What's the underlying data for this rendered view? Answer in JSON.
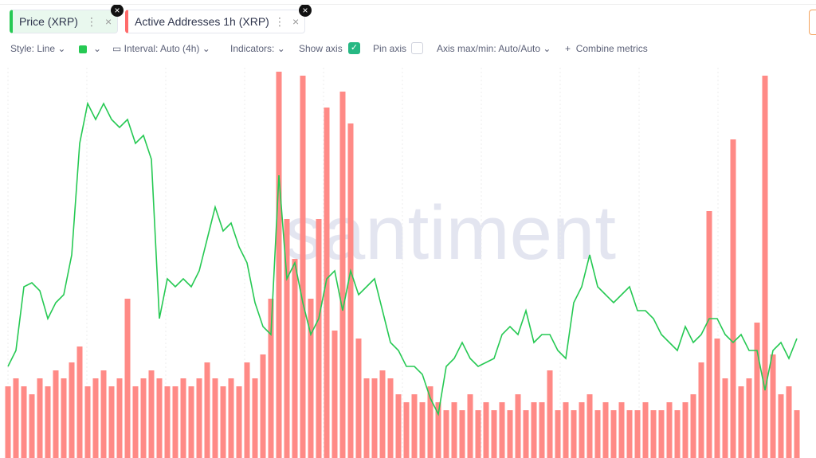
{
  "tabs": [
    "Price (XRP)",
    "Active Addresses 1h (XRP)"
  ],
  "toolbar": [
    "Style: Line",
    "Interval: Auto (4h)",
    "Indicators:",
    "Show axis",
    "Pin axis",
    "Axis max/min: Auto/Auto",
    "Combine metrics"
  ],
  "watermark": "santiment",
  "chart_data": {
    "type": "combo",
    "ylim": [
      0,
      490
    ],
    "series": [
      {
        "name": "Active Addresses 1h (XRP)",
        "type": "bar",
        "color": "#ff8a86",
        "values": [
          90,
          100,
          90,
          80,
          100,
          90,
          110,
          100,
          120,
          140,
          90,
          100,
          110,
          90,
          100,
          200,
          90,
          100,
          110,
          100,
          90,
          90,
          100,
          90,
          100,
          120,
          100,
          90,
          100,
          90,
          120,
          100,
          130,
          200,
          485,
          300,
          250,
          480,
          200,
          300,
          440,
          160,
          460,
          420,
          150,
          100,
          100,
          110,
          100,
          80,
          70,
          80,
          70,
          90,
          70,
          60,
          70,
          60,
          80,
          60,
          70,
          60,
          70,
          60,
          80,
          60,
          70,
          70,
          110,
          60,
          70,
          60,
          70,
          80,
          60,
          70,
          60,
          70,
          60,
          60,
          70,
          60,
          60,
          70,
          60,
          70,
          80,
          120,
          310,
          150,
          100,
          400,
          90,
          100,
          170,
          480,
          130,
          80,
          90,
          60
        ]
      },
      {
        "name": "Price (XRP)",
        "type": "line",
        "color": "#26c953",
        "values": [
          115,
          135,
          215,
          220,
          210,
          175,
          195,
          205,
          255,
          395,
          445,
          425,
          445,
          425,
          415,
          425,
          395,
          405,
          375,
          175,
          225,
          215,
          225,
          215,
          235,
          275,
          315,
          285,
          295,
          265,
          245,
          195,
          165,
          155,
          355,
          225,
          245,
          195,
          155,
          175,
          225,
          235,
          185,
          235,
          205,
          215,
          225,
          185,
          145,
          135,
          115,
          115,
          105,
          75,
          55,
          115,
          125,
          145,
          125,
          115,
          120,
          125,
          155,
          165,
          155,
          185,
          145,
          155,
          155,
          135,
          125,
          195,
          215,
          255,
          215,
          205,
          195,
          205,
          215,
          185,
          185,
          175,
          155,
          145,
          135,
          165,
          145,
          155,
          175,
          175,
          155,
          145,
          155,
          135,
          135,
          85,
          135,
          145,
          125,
          150
        ]
      }
    ]
  }
}
